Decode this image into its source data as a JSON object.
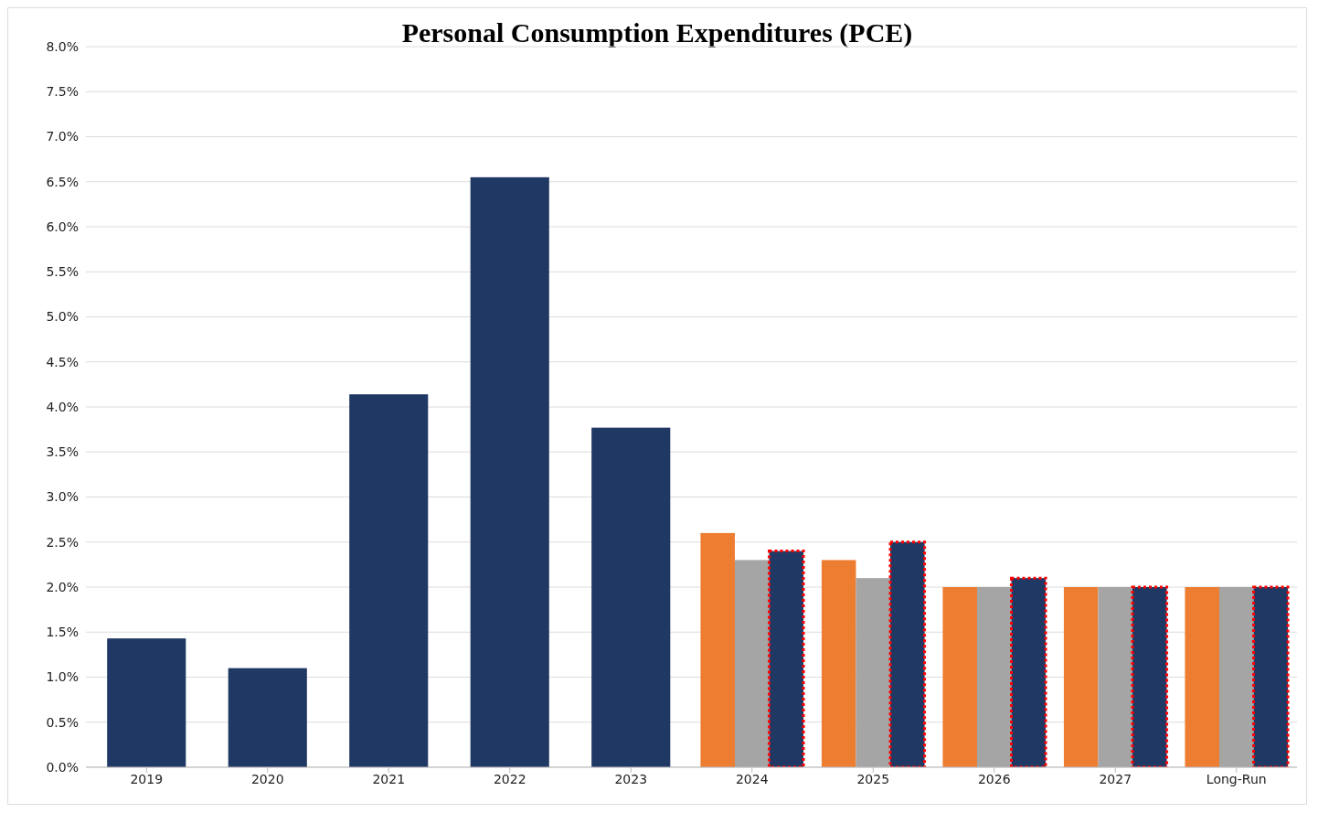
{
  "chart_data": {
    "type": "bar",
    "title": "Personal Consumption Expenditures (PCE)",
    "categories": [
      "2019",
      "2020",
      "2021",
      "2022",
      "2023",
      "2024",
      "2025",
      "2026",
      "2027",
      "Long-Run"
    ],
    "series": [
      {
        "color": "#203864",
        "values": [
          1.43,
          1.1,
          4.14,
          6.55,
          3.77,
          null,
          null,
          null,
          null,
          null
        ]
      },
      {
        "color": "#ed7d31",
        "values": [
          null,
          null,
          null,
          null,
          null,
          2.6,
          2.3,
          2.0,
          2.0,
          2.0
        ]
      },
      {
        "color": "#a5a5a5",
        "values": [
          null,
          null,
          null,
          null,
          null,
          2.3,
          2.1,
          2.0,
          2.0,
          2.0
        ]
      },
      {
        "color": "#203864",
        "line_style": "dotted",
        "values": [
          null,
          null,
          null,
          null,
          null,
          2.4,
          2.5,
          2.1,
          2.0,
          2.0
        ]
      }
    ],
    "ylim": [
      0,
      8
    ],
    "yticks": [
      {
        "value": 0,
        "label": "0.0%"
      },
      {
        "value": 0.5,
        "label": "0.5%"
      },
      {
        "value": 1,
        "label": "1.0%"
      },
      {
        "value": 1.5,
        "label": "1.5%"
      },
      {
        "value": 2,
        "label": "2.0%"
      },
      {
        "value": 2.5,
        "label": "2.5%"
      },
      {
        "value": 3,
        "label": "3.0%"
      },
      {
        "value": 3.5,
        "label": "3.5%"
      },
      {
        "value": 4,
        "label": "4.0%"
      },
      {
        "value": 4.5,
        "label": "4.5%"
      },
      {
        "value": 5,
        "label": "5.0%"
      },
      {
        "value": 5.5,
        "label": "5.5%"
      },
      {
        "value": 6,
        "label": "6.0%"
      },
      {
        "value": 6.5,
        "label": "6.5%"
      },
      {
        "value": 7,
        "label": "7.0%"
      },
      {
        "value": 7.5,
        "label": "7.5%"
      },
      {
        "value": 8,
        "label": "8.0%"
      }
    ],
    "grid": "y",
    "legend": false
  }
}
